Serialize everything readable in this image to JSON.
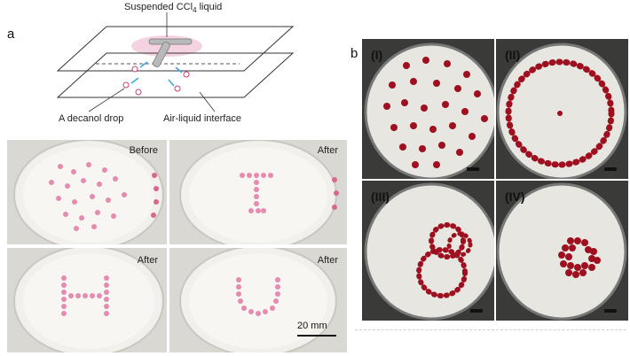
{
  "panel_a": {
    "letter": "a",
    "schematic": {
      "top_label_text": "Suspended CCl",
      "top_label_sub": "4",
      "top_label_tail": " liquid",
      "left_label": "A decanol drop",
      "right_label": "Air-liquid interface"
    },
    "photos": [
      {
        "label": "Before"
      },
      {
        "label": "After"
      },
      {
        "label": "After"
      },
      {
        "label": "After"
      }
    ],
    "scale": "20 mm"
  },
  "panel_b": {
    "letter": "b",
    "photos": [
      {
        "label": "(I)"
      },
      {
        "label": "(II)"
      },
      {
        "label": "(III)"
      },
      {
        "label": "(IV)"
      }
    ]
  },
  "colors": {
    "pink_drop": "#e58bb0",
    "red_drop": "#9e1020",
    "dish_bg": "#e8e6e0"
  }
}
